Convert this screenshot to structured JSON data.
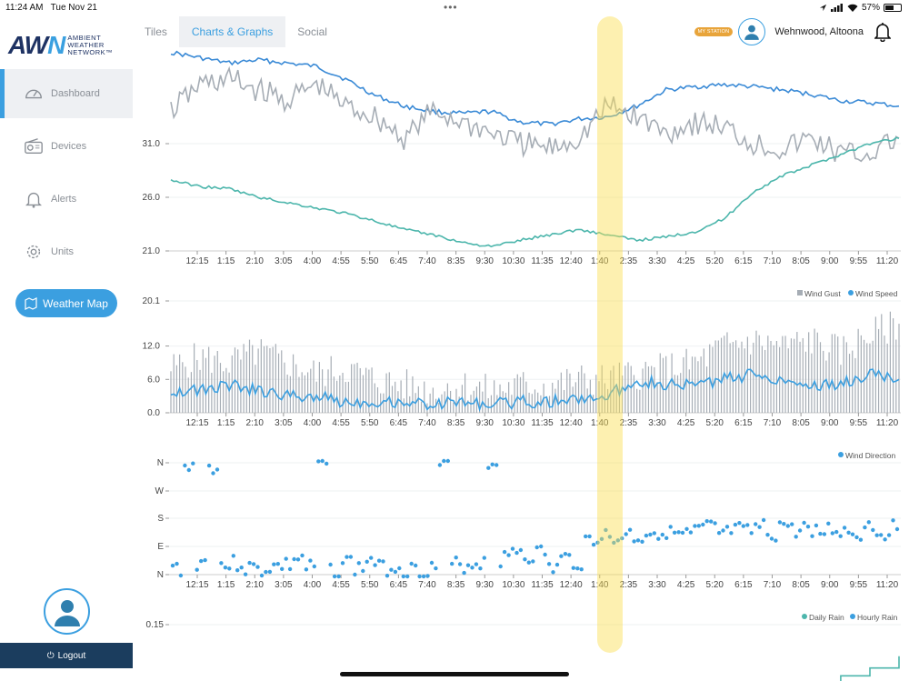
{
  "status": {
    "time": "11:24 AM",
    "date": "Tue Nov 21",
    "battery": "57%",
    "battery_level": 0.57
  },
  "brand": {
    "logo": "AWN",
    "name_lines": [
      "AMBIENT",
      "WEATHER",
      "NETWORK™"
    ]
  },
  "sidebar": {
    "items": [
      {
        "label": "Dashboard",
        "icon": "gauge-icon",
        "active": true
      },
      {
        "label": "Devices",
        "icon": "radio-icon"
      },
      {
        "label": "Alerts",
        "icon": "bell-icon"
      },
      {
        "label": "Units",
        "icon": "gear-icon"
      }
    ],
    "map_button": "Weather Map",
    "logout": "Logout"
  },
  "header": {
    "tabs": [
      {
        "label": "Tiles"
      },
      {
        "label": "Charts & Graphs",
        "active": true
      },
      {
        "label": "Social"
      }
    ],
    "badge": "MY STATION",
    "station": "Wehnwood, Altoona"
  },
  "x_ticks": [
    "12:15",
    "1:15",
    "2:10",
    "3:05",
    "4:00",
    "4:55",
    "5:50",
    "6:45",
    "7:40",
    "8:35",
    "9:30",
    "10:30",
    "11:35",
    "12:40",
    "1:40",
    "2:35",
    "3:30",
    "4:25",
    "5:20",
    "6:15",
    "7:10",
    "8:05",
    "9:00",
    "9:55",
    "11:20"
  ],
  "colors": {
    "accent": "#3b9fe0",
    "navy": "#1e3263",
    "temp_line": "#3a8ad6",
    "gray_line": "#a6adb5",
    "teal_line": "#4db6ac",
    "badge": "#e8a43a",
    "highlight": "#fade50"
  },
  "chart_data": [
    {
      "type": "line",
      "title": "",
      "y_ticks": [
        "21.0",
        "26.0",
        "31.0"
      ],
      "ylim": [
        21.0,
        40.5
      ],
      "series": [
        {
          "values": [
            39.5,
            39.0,
            38.5,
            38.8,
            38.5,
            38.2,
            37.0,
            35.5,
            34.5,
            34.0,
            33.8,
            34.0,
            33.0,
            32.8,
            33.3,
            33.5,
            34.5,
            36.0,
            36.3,
            36.5,
            36.3,
            36.0,
            35.6,
            35.0,
            34.8,
            34.5
          ]
        },
        {
          "values": [
            34.0,
            36.5,
            37.0,
            36.0,
            35.0,
            36.5,
            34.5,
            33.5,
            31.5,
            34.0,
            33.0,
            32.0,
            31.0,
            30.5,
            31.5,
            34.5,
            33.5,
            32.0,
            33.0,
            32.5,
            31.0,
            30.5,
            31.5,
            30.0,
            30.0,
            31.5
          ]
        },
        {
          "values": [
            27.6,
            27.0,
            26.8,
            26.0,
            25.5,
            25.0,
            24.5,
            23.8,
            23.0,
            22.5,
            21.8,
            21.4,
            22.0,
            22.5,
            23.0,
            22.5,
            22.0,
            22.3,
            22.8,
            24.0,
            26.5,
            28.0,
            29.0,
            30.0,
            31.0,
            31.5
          ]
        }
      ]
    },
    {
      "type": "bar",
      "title": "",
      "y_ticks": [
        "0.0",
        "6.0",
        "12.0",
        "20.1"
      ],
      "ylim": [
        0,
        20.1
      ],
      "legend": [
        "Wind Gust",
        "Wind Speed"
      ],
      "series": [
        {
          "name": "Wind Gust",
          "values": [
            8,
            10,
            9,
            11,
            9,
            7,
            8,
            6,
            5,
            4,
            5,
            4,
            5,
            5,
            6,
            6,
            7,
            8,
            9,
            12,
            13,
            12,
            13,
            11,
            14,
            16
          ]
        },
        {
          "name": "Wind Speed",
          "values": [
            4,
            4,
            5,
            4,
            3,
            3,
            2,
            2,
            2,
            1.5,
            2,
            1.5,
            2,
            2,
            2.5,
            3,
            6,
            5,
            5,
            6,
            7,
            6,
            5,
            5,
            7,
            6
          ]
        }
      ]
    },
    {
      "type": "scatter",
      "title": "",
      "y_ticks": [
        "N",
        "E",
        "S",
        "W",
        "N"
      ],
      "ylim": [
        0,
        360
      ],
      "legend": [
        "Wind Direction"
      ],
      "series": [
        {
          "name": "Wind Direction",
          "values": [
            20,
            345,
            40,
            350,
            30,
            35,
            20,
            15,
            25,
            30,
            50,
            20,
            355,
            15,
            40,
            20,
            45,
            20,
            25,
            15,
            15,
            20,
            355,
            30,
            30,
            40,
            360,
            50,
            80,
            60,
            70,
            20,
            50,
            40,
            110,
            125,
            110,
            130,
            120,
            135,
            140,
            130,
            125,
            140,
            150,
            130,
            140,
            135,
            150,
            130,
            160,
            140,
            150,
            135,
            145,
            140,
            130,
            160,
            135,
            150
          ]
        }
      ]
    },
    {
      "type": "line",
      "title": "",
      "y_ticks": [
        "0.15"
      ],
      "legend": [
        "Daily Rain",
        "Hourly Rain"
      ],
      "series": [
        {
          "name": "Daily Rain",
          "values": [
            0,
            0,
            0,
            0,
            0,
            0,
            0,
            0,
            0,
            0,
            0,
            0,
            0,
            0,
            0,
            0,
            0,
            0,
            0,
            0,
            0,
            0,
            0,
            0.02,
            0.04,
            0.07
          ]
        },
        {
          "name": "Hourly Rain",
          "values": [
            0,
            0,
            0,
            0,
            0,
            0,
            0,
            0,
            0,
            0,
            0,
            0,
            0,
            0,
            0,
            0,
            0,
            0,
            0,
            0,
            0,
            0,
            0,
            0.02,
            0.04,
            0.07
          ]
        }
      ]
    }
  ]
}
